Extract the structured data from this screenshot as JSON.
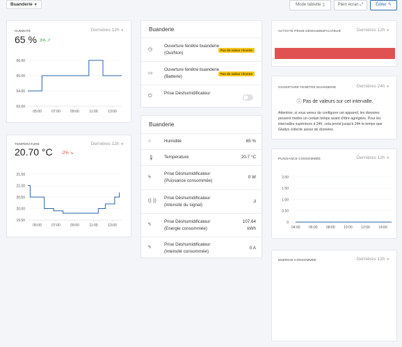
{
  "topbar": {
    "room": "Buanderie",
    "tablet_mode": "Mode tablette",
    "fullscreen": "Plein écran",
    "edit": "Éditer"
  },
  "humidity": {
    "label": "Humidité",
    "value": "65 %",
    "trend": "3%",
    "period": "Dernières 12h",
    "chart_data": {
      "type": "line",
      "x_ticks": [
        "05:00",
        "07:00",
        "09:00",
        "11:00",
        "13:00"
      ],
      "y_ticks": [
        "66.00",
        "65.00",
        "64.00",
        "63.00"
      ],
      "ylim": [
        63,
        66
      ],
      "x": [
        "04:00",
        "05:30",
        "05:30",
        "10:30",
        "10:30",
        "12:00",
        "12:00",
        "14:00"
      ],
      "y": [
        64,
        64,
        65,
        65,
        66,
        66,
        65,
        65
      ]
    }
  },
  "temperature": {
    "label": "Température",
    "value": "20.70 °C",
    "trend": "-2%",
    "period": "Dernières 12h",
    "chart_data": {
      "type": "line",
      "x_ticks": [
        "05:00",
        "07:00",
        "09:00",
        "11:00",
        "13:00"
      ],
      "y_ticks": [
        "21.50",
        "21.00",
        "20.50",
        "20.00",
        "19.50"
      ],
      "ylim": [
        19.5,
        21.5
      ],
      "x": [
        "04:00",
        "04:15",
        "04:15",
        "05:45",
        "05:45",
        "06:45",
        "06:45",
        "07:45",
        "07:45",
        "11:30",
        "11:30",
        "12:15",
        "12:15",
        "13:15",
        "13:15",
        "13:45",
        "13:45"
      ],
      "y": [
        21.0,
        21.0,
        20.5,
        20.5,
        20.0,
        20.0,
        19.9,
        19.9,
        19.8,
        19.8,
        20.0,
        20.0,
        20.2,
        20.2,
        20.5,
        20.5,
        20.7
      ]
    }
  },
  "buanderie1": {
    "title": "Buanderie",
    "rows": [
      {
        "icon": "clock-icon",
        "label": "Ouverture fenêtre buanderie (Oui/Non)",
        "badge": "Pas de valeur récente"
      },
      {
        "icon": "battery-icon",
        "label": "Ouverture fenêtre buanderie (Batterie)",
        "badge": "Pas de valeur récente"
      },
      {
        "icon": "plug-icon",
        "label": "Prise Déshumidificateur"
      }
    ]
  },
  "buanderie2": {
    "title": "Buanderie",
    "rows": [
      {
        "label": "Humidité",
        "value": "65 %"
      },
      {
        "label": "Température",
        "value": "20.7 °C"
      },
      {
        "label": "Prise Déshumidificateur (Puissance consommée)",
        "value": "0 W"
      },
      {
        "label": "Prise Déshumidificateur (Intensité du signal)",
        "value": ".il"
      },
      {
        "label": "Prise Déshumidificateur (Energie consommée)",
        "value": "107.64 kWh"
      },
      {
        "label": "Prise Déshumidificateur (Intensité consommée)",
        "value": "0 A"
      }
    ]
  },
  "activity": {
    "label": "Activité prise déshumidificateur",
    "period": "Dernières 12h",
    "bar_color": "#e05252"
  },
  "window": {
    "label": "Ouverture fenêtre buanderie",
    "period": "Dernières 24h",
    "no_values": "Pas de valeurs sur cet intervalle.",
    "note": "Attention, si vous venez de configurer cet appareil, les données peuvent mettre un certain temps avant d'être agrégées. Pour les intervalles supérieurs à 24h, cela prend jusqu'à 24h le temps que Gladys collecte assez de données."
  },
  "power": {
    "label": "Puissance consommée",
    "period": "Dernières 12h",
    "chart_data": {
      "type": "line",
      "x_ticks": [
        "04:00",
        "06:00",
        "08:00",
        "10:00",
        "12:00",
        "14:00"
      ],
      "y_ticks": [
        "2.00",
        "1.50",
        "1.00",
        "0.50",
        "0"
      ],
      "ylim": [
        0,
        2
      ],
      "x": [
        "04:00",
        "15:00"
      ],
      "y": [
        0,
        0
      ]
    }
  },
  "energy": {
    "label": "Energie consommée",
    "period": "Dernières 12h"
  }
}
